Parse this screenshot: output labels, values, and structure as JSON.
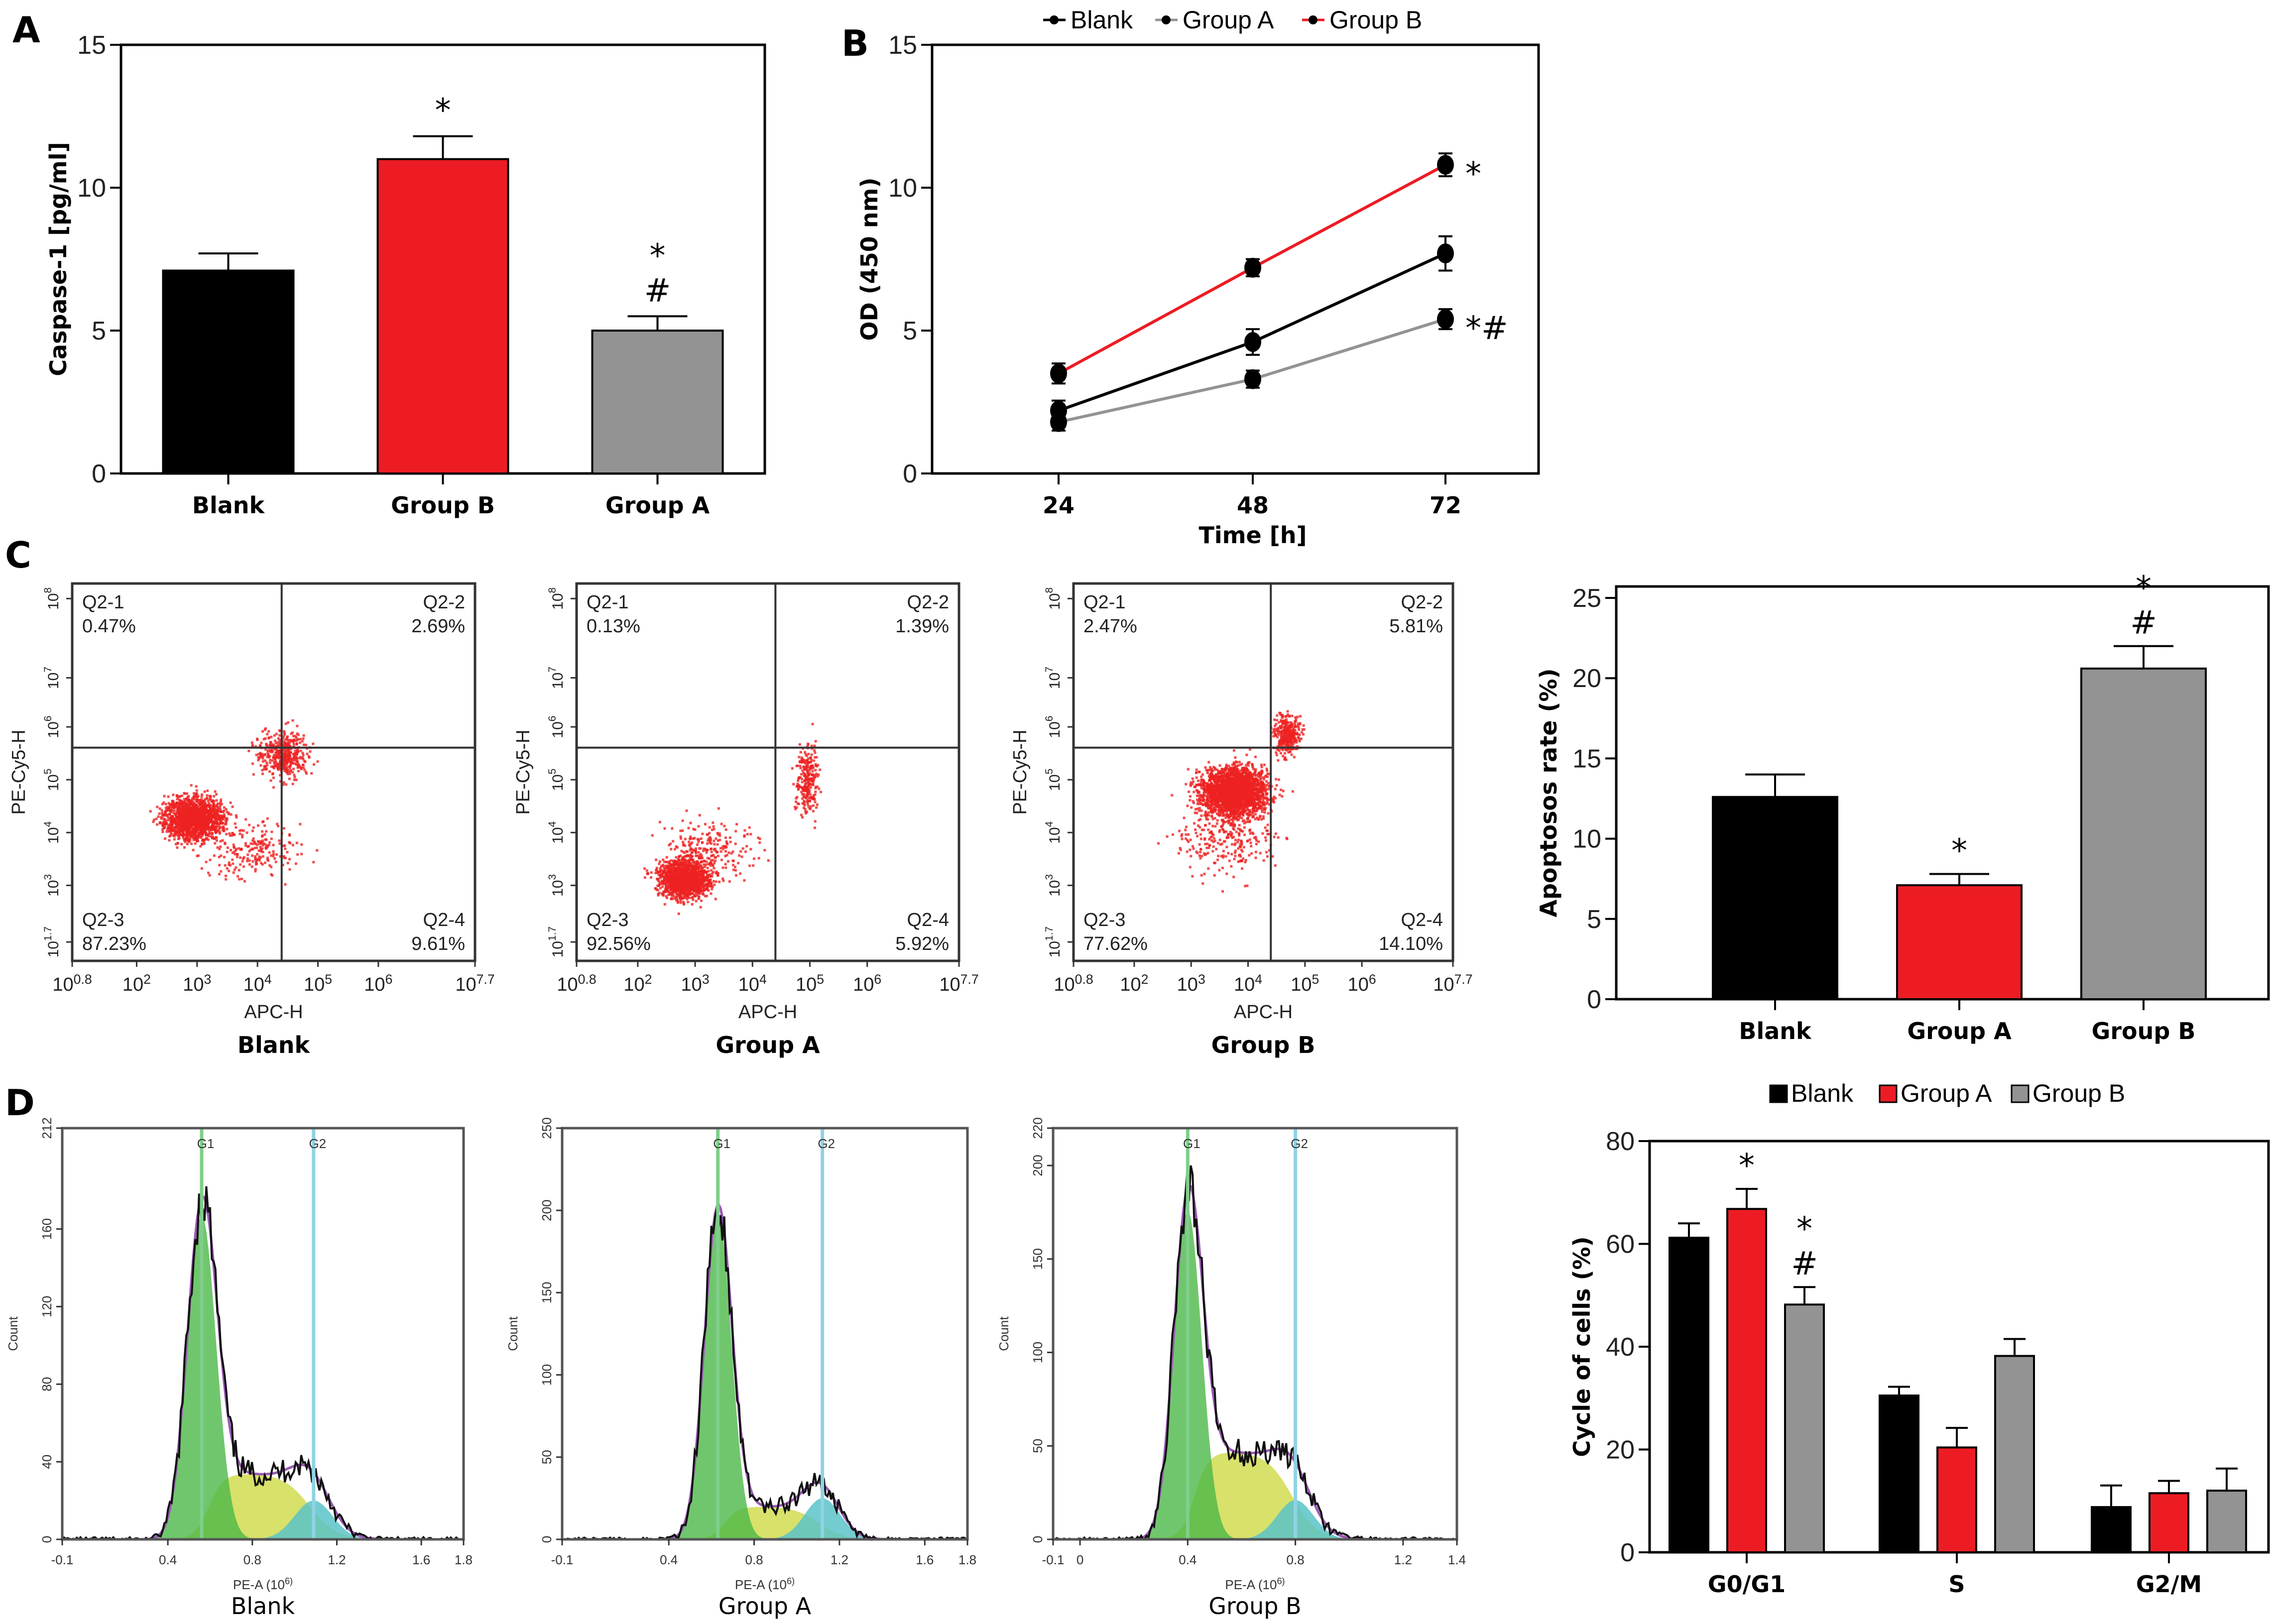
{
  "figure": {
    "panel_letters": [
      "A",
      "B",
      "C",
      "D"
    ]
  },
  "colors": {
    "blank": "#000000",
    "group_a": "#ed1c24",
    "group_b": "#939393",
    "flow_dots": "#ee2222",
    "g1_fill": "#4cb848",
    "s_fill": "#d4de5a",
    "g2_fill": "#5bc3c8",
    "g2_line": "#8fd3e4",
    "fit_line": "#9b59b6"
  },
  "chart_data": [
    {
      "id": "A",
      "type": "bar",
      "title": "",
      "xlabel": "",
      "ylabel": "Caspase-1 [pg/ml]",
      "ylim": [
        0,
        15
      ],
      "yticks": [
        "0",
        "5",
        "10",
        "15"
      ],
      "categories": [
        "Blank",
        "Group B",
        "Group A"
      ],
      "values": [
        7.1,
        11.0,
        5.0
      ],
      "errors": [
        0.6,
        0.8,
        0.5
      ],
      "bar_colors": [
        "#000000",
        "#ed1c24",
        "#939393"
      ],
      "annotations": [
        "",
        "*",
        "*\n#"
      ],
      "grid": false
    },
    {
      "id": "B",
      "type": "line",
      "xlabel": "Time [h]",
      "ylabel": "OD (450 nm)",
      "ylim": [
        0,
        15
      ],
      "yticks": [
        "0",
        "5",
        "10",
        "15"
      ],
      "x": [
        "24",
        "48",
        "72"
      ],
      "legend": [
        "Blank",
        "Group A",
        "Group B"
      ],
      "legend_position": "top",
      "series": [
        {
          "name": "Blank",
          "color": "#000000",
          "values": [
            2.2,
            4.6,
            7.7
          ],
          "errors": [
            0.35,
            0.45,
            0.6
          ]
        },
        {
          "name": "Group A",
          "color": "#939393",
          "values": [
            1.8,
            3.3,
            5.4
          ],
          "errors": [
            0.3,
            0.3,
            0.35
          ]
        },
        {
          "name": "Group B",
          "color": "#ed1c24",
          "values": [
            3.5,
            7.2,
            10.8
          ],
          "errors": [
            0.35,
            0.3,
            0.4
          ]
        }
      ],
      "annotations": [
        {
          "series": "Group B",
          "x": "72",
          "text": "*"
        },
        {
          "series": "Group A",
          "x": "72",
          "text": "*#"
        }
      ],
      "grid": false
    },
    {
      "id": "C-flow",
      "type": "scatter",
      "xlabel": "APC-H",
      "ylabel": "PE-Cy5-H",
      "xticks": [
        "10^0.8",
        "10^2",
        "10^3",
        "10^4",
        "10^5",
        "10^6",
        "10^7.7"
      ],
      "yticks": [
        "10^1.7",
        "10^3",
        "10^4",
        "10^5",
        "10^6",
        "10^7",
        "10^8"
      ],
      "plots": [
        {
          "title": "Blank",
          "quadrants": {
            "Q2-1": "0.47%",
            "Q2-2": "2.69%",
            "Q2-3": "87.23%",
            "Q2-4": "9.61%"
          }
        },
        {
          "title": "Group A",
          "quadrants": {
            "Q2-1": "0.13%",
            "Q2-2": "1.39%",
            "Q2-3": "92.56%",
            "Q2-4": "5.92%"
          }
        },
        {
          "title": "Group B",
          "quadrants": {
            "Q2-1": "2.47%",
            "Q2-2": "5.81%",
            "Q2-3": "77.62%",
            "Q2-4": "14.10%"
          }
        }
      ]
    },
    {
      "id": "C-bar",
      "type": "bar",
      "ylabel": "Apoptosos rate (%)",
      "ylim": [
        0,
        25
      ],
      "yticks": [
        "0",
        "5",
        "10",
        "15",
        "20",
        "25"
      ],
      "categories": [
        "Blank",
        "Group A",
        "Group B"
      ],
      "values": [
        12.6,
        7.1,
        20.6
      ],
      "errors": [
        1.4,
        0.7,
        1.4
      ],
      "bar_colors": [
        "#000000",
        "#ed1c24",
        "#939393"
      ],
      "annotations": [
        "",
        "*",
        "*\n#"
      ],
      "grid": false
    },
    {
      "id": "D-hist",
      "type": "area",
      "xlabel": "PE-A (10^6)",
      "ylabel": "Count",
      "plots": [
        {
          "title": "Blank",
          "xticks": [
            "-0.1",
            "0.4",
            "0.8",
            "1.2",
            "1.6",
            "1.8"
          ],
          "yticks": [
            "0",
            "40",
            "80",
            "120",
            "160",
            "212"
          ],
          "xlim": [
            -0.1,
            1.8
          ],
          "ylim": [
            0,
            212
          ],
          "g1_pos": 0.56,
          "g2_pos": 1.09,
          "g1_peak": 190,
          "s_level": 34,
          "g2_peak": 20,
          "markers": [
            "G1",
            "G2"
          ]
        },
        {
          "title": "Group A",
          "xticks": [
            "-0.1",
            "0.4",
            "0.8",
            "1.2",
            "1.6",
            "1.8"
          ],
          "yticks": [
            "0",
            "50",
            "100",
            "150",
            "200",
            "250"
          ],
          "xlim": [
            -0.1,
            1.8
          ],
          "ylim": [
            0,
            250
          ],
          "g1_pos": 0.63,
          "g2_pos": 1.12,
          "g1_peak": 225,
          "s_level": 20,
          "g2_peak": 25,
          "markers": [
            "G1",
            "G2"
          ]
        },
        {
          "title": "Group B",
          "xticks": [
            "-0.1",
            "0",
            "0.4",
            "0.8",
            "1.2",
            "1.4"
          ],
          "yticks": [
            "0",
            "50",
            "100",
            "150",
            "200",
            "220"
          ],
          "xlim": [
            -0.1,
            1.4
          ],
          "ylim": [
            0,
            220
          ],
          "g1_pos": 0.4,
          "g2_pos": 0.8,
          "g1_peak": 200,
          "s_level": 47,
          "g2_peak": 21,
          "markers": [
            "G1",
            "G2"
          ]
        }
      ]
    },
    {
      "id": "D-bar",
      "type": "bar",
      "ylabel": "Cycle of cells (%)",
      "ylim": [
        0,
        80
      ],
      "yticks": [
        "0",
        "20",
        "40",
        "60",
        "80"
      ],
      "categories": [
        "G0/G1",
        "S",
        "G2/M"
      ],
      "legend": [
        "Blank",
        "Group A",
        "Group B"
      ],
      "legend_position": "top",
      "series": [
        {
          "name": "Blank",
          "color": "#000000",
          "values": [
            61.2,
            30.5,
            8.8
          ],
          "errors": [
            2.8,
            1.7,
            4.2
          ]
        },
        {
          "name": "Group A",
          "color": "#ed1c24",
          "values": [
            66.8,
            20.4,
            11.5
          ],
          "errors": [
            3.9,
            3.8,
            2.4
          ]
        },
        {
          "name": "Group B",
          "color": "#939393",
          "values": [
            48.2,
            38.2,
            12.0
          ],
          "errors": [
            3.4,
            3.3,
            4.3
          ]
        }
      ],
      "annotations": [
        {
          "category": "G0/G1",
          "series": "Group A",
          "text": "*"
        },
        {
          "category": "G0/G1",
          "series": "Group B",
          "text": "*\n#"
        }
      ],
      "grid": false
    }
  ]
}
